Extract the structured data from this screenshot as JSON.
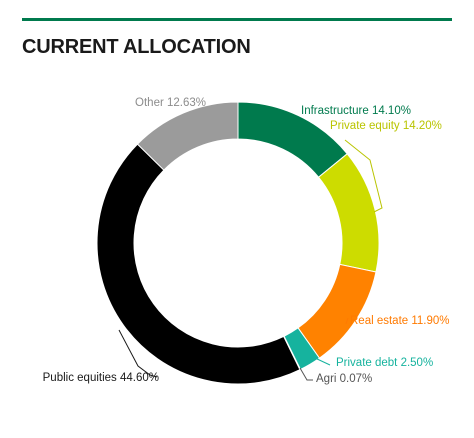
{
  "header": {
    "title": "CURRENT ALLOCATION"
  },
  "colors": {
    "accent": "#007a4d"
  },
  "chart_data": {
    "type": "pie",
    "variant": "donut",
    "title": "CURRENT ALLOCATION",
    "legend": "none",
    "slices": [
      {
        "label": "Infrastructure",
        "value": 14.1,
        "display": "Infrastructure 14.10%",
        "color": "#007a4d",
        "label_color": "#007a4d"
      },
      {
        "label": "Private equity",
        "value": 14.2,
        "display": "Private equity 14.20%",
        "color": "#cddc00",
        "label_color": "#b9c400"
      },
      {
        "label": "Real estate",
        "value": 11.9,
        "display": "Real estate 11.90%",
        "color": "#ff8200",
        "label_color": "#ff7a00"
      },
      {
        "label": "Private debt",
        "value": 2.5,
        "display": "Private debt 2.50%",
        "color": "#16b39e",
        "label_color": "#16b39e"
      },
      {
        "label": "Agri",
        "value": 0.07,
        "display": "Agri 0.07%",
        "color": "#7a7a7a",
        "label_color": "#555555"
      },
      {
        "label": "Public equities",
        "value": 44.6,
        "display": "Public equities 44.60%",
        "color": "#000000",
        "label_color": "#1a1a1a"
      },
      {
        "label": "Other",
        "value": 12.63,
        "display": "Other 12.63%",
        "color": "#9b9b9b",
        "label_color": "#8c8c8c"
      }
    ]
  }
}
